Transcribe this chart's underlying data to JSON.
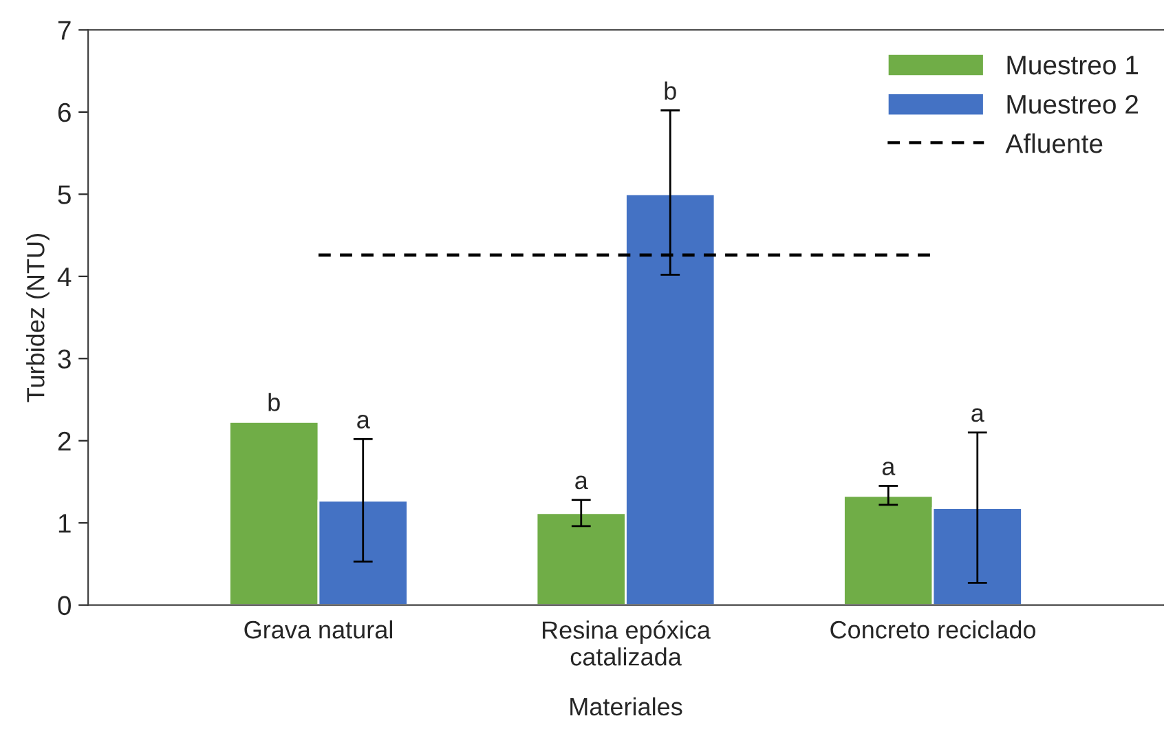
{
  "chart_data": {
    "type": "bar",
    "xlabel": "Materiales",
    "ylabel": "Turbidez (NTU)",
    "categories": [
      "Grava natural",
      "Resina epóxica\ncatalizada",
      "Concreto reciclado"
    ],
    "series": [
      {
        "name": "Muestreo 1",
        "color": "#70ad47",
        "values": [
          2.23,
          1.12,
          1.33
        ],
        "errors": [
          null,
          [
            0.96,
            1.28
          ],
          [
            1.22,
            1.45
          ]
        ]
      },
      {
        "name": "Muestreo 2",
        "color": "#4472c4",
        "values": [
          1.27,
          5.0,
          1.18
        ],
        "errors": [
          [
            0.53,
            2.02
          ],
          [
            4.02,
            6.02
          ],
          [
            0.27,
            2.1
          ]
        ]
      },
      {
        "name": "Afluente",
        "type": "line",
        "color": "#000000",
        "values": [
          4.26,
          4.26,
          4.26
        ],
        "line_style": "dashed",
        "marker": "none"
      }
    ],
    "annotations": [
      "b",
      "a",
      "a",
      "b",
      "a",
      "a"
    ],
    "ylim": [
      0,
      7
    ],
    "yticks": [
      0,
      1,
      2,
      3,
      4,
      5,
      6,
      7
    ],
    "grid": false,
    "legend": "top right"
  }
}
